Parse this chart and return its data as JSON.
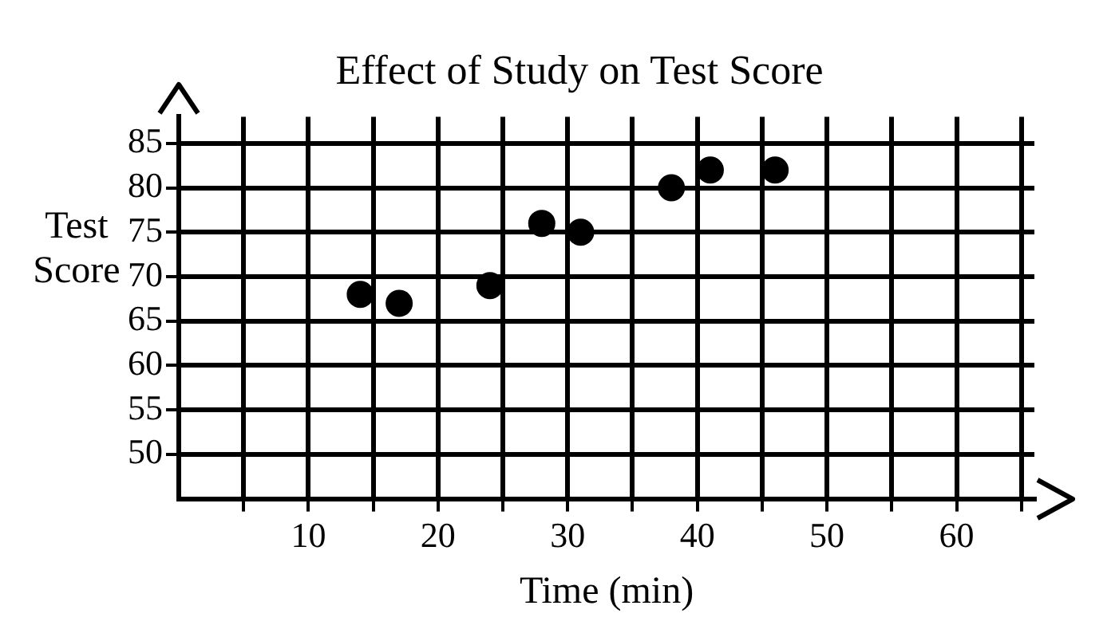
{
  "chart_data": {
    "type": "scatter",
    "title": "Effect of Study on Test Score",
    "xlabel": "Time (min)",
    "ylabel": "Test Score",
    "series": [
      {
        "color": "#000000",
        "x": [
          14,
          17,
          24,
          28,
          31,
          38,
          41,
          46
        ],
        "values": [
          68,
          67,
          69,
          76,
          75,
          80,
          82,
          82
        ]
      }
    ],
    "xlim": [
      0,
      66
    ],
    "ylim": [
      45,
      88
    ],
    "xticks": [
      {
        "value": 5,
        "label": null
      },
      10,
      {
        "value": 15,
        "label": null
      },
      20,
      {
        "value": 25,
        "label": null
      },
      30,
      {
        "value": 35,
        "label": null
      },
      40,
      {
        "value": 45,
        "label": null
      },
      50,
      {
        "value": 55,
        "label": null
      },
      60,
      {
        "value": 65,
        "label": null
      }
    ],
    "yticks": [
      50,
      55,
      60,
      65,
      70,
      75,
      80,
      85
    ],
    "grid": true,
    "legend": false,
    "marker": "circle"
  }
}
